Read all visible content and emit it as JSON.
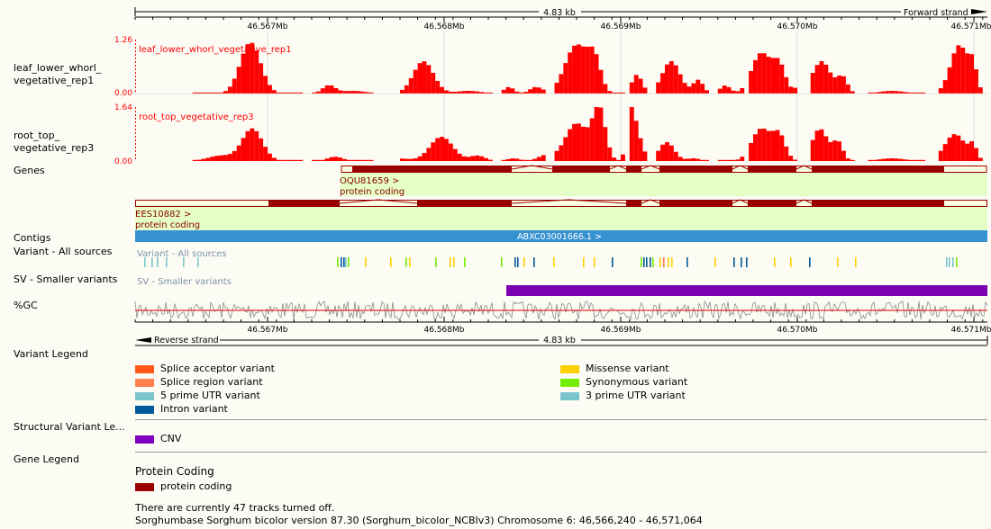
{
  "ruler": {
    "top_length": "4.83 kb",
    "forward_strand": "Forward strand",
    "reverse_strand": "Reverse strand",
    "bottom_length": "4.83 kb",
    "ticks": [
      "46.567Mb",
      "46.568Mb",
      "46.569Mb",
      "46.570Mb",
      "46.571Mb"
    ]
  },
  "tracks": {
    "leaf": {
      "label_line1": "leaf_lower_whorl_",
      "label_line2": "vegetative_rep1",
      "name": "leaf_lower_whorl_vegetative_rep1",
      "max": "1.26",
      "min": "0.00",
      "color": "#ff0000"
    },
    "root": {
      "label_line1": "root_top_",
      "label_line2": "vegetative_rep3",
      "name": "root_top_vegetative_rep3",
      "max": "1.64",
      "min": "0.00",
      "color": "#ff0000"
    },
    "genes": {
      "label": "Genes",
      "gene1_name": "OQU81659 >",
      "gene1_type": "protein coding",
      "gene2_name": "EES10882 >",
      "gene2_type": "protein coding",
      "exon_color": "#990000"
    },
    "contigs": {
      "label": "Contigs",
      "name": "ABXC03001666.1 >",
      "color": "#3691d0"
    },
    "variants": {
      "label": "Variant - All sources",
      "inner_label": "Variant - All sources"
    },
    "sv": {
      "label": "SV - Smaller variants",
      "inner_label": "SV - Smaller variants",
      "color": "#7a00b4"
    },
    "gc": {
      "label": "%GC"
    }
  },
  "legends": {
    "variant": {
      "title": "Variant Legend",
      "items": [
        {
          "label": "Splice acceptor variant",
          "color": "#ff581a"
        },
        {
          "label": "Splice region variant",
          "color": "#ff7f50"
        },
        {
          "label": "5 prime UTR variant",
          "color": "#7ac5cd"
        },
        {
          "label": "Intron variant",
          "color": "#02599c"
        },
        {
          "label": "Missense variant",
          "color": "#ffd000"
        },
        {
          "label": "Synonymous variant",
          "color": "#76ee00"
        },
        {
          "label": "3 prime UTR variant",
          "color": "#7ac5cd"
        }
      ]
    },
    "structural": {
      "title": "Structural Variant Le...",
      "cnv_label": "CNV",
      "cnv_color": "#8000c0"
    },
    "gene": {
      "title": "Gene Legend",
      "heading": "Protein Coding",
      "item_label": "protein coding",
      "item_color": "#990000"
    }
  },
  "footer": {
    "tracks_off": "There are currently 47 tracks turned off.",
    "assembly": "Sorghumbase Sorghum bicolor version 87.30 (Sorghum_bicolor_NCBIv3) Chromosome 6: 46,566,240 - 46,571,064"
  }
}
